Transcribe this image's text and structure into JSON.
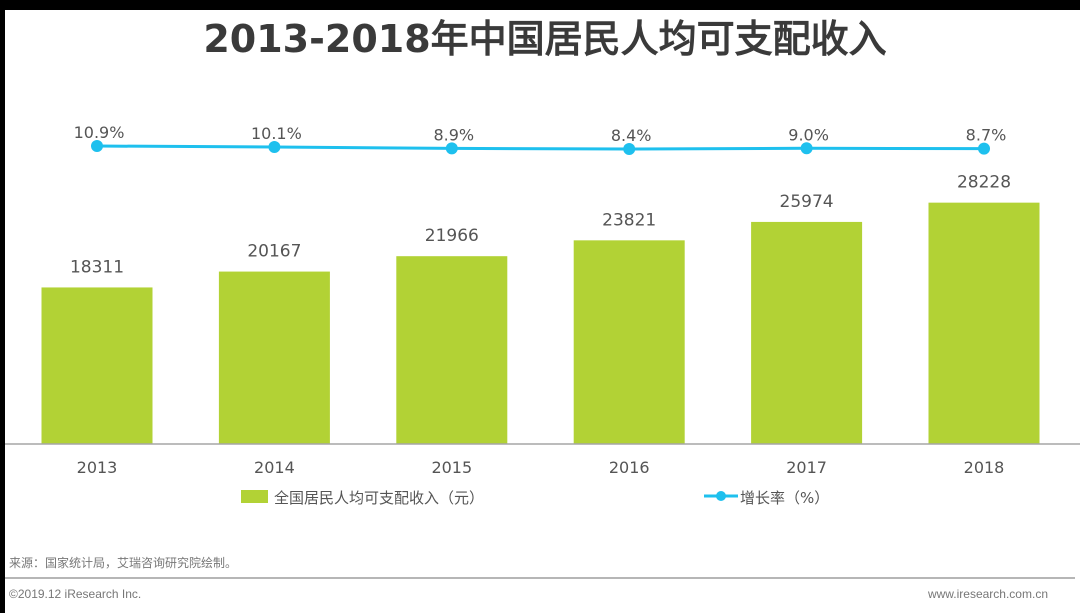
{
  "chart_data": {
    "type": "bar",
    "title": "2013-2018年中国居民人均可支配收入",
    "categories": [
      "2013",
      "2014",
      "2015",
      "2016",
      "2017",
      "2018"
    ],
    "series": [
      {
        "name": "全国居民人均可支配收入（元）",
        "kind": "bar",
        "axis": "left",
        "color": "#b2d235",
        "values": [
          18311,
          20167,
          21966,
          23821,
          25974,
          28228
        ],
        "labels": [
          "18311",
          "20167",
          "21966",
          "23821",
          "25974",
          "28228"
        ]
      },
      {
        "name": "增长率（%）",
        "kind": "line",
        "axis": "right",
        "color": "#1ec0ee",
        "values": [
          10.9,
          10.1,
          8.9,
          8.4,
          9.0,
          8.7
        ],
        "labels": [
          "10.9%",
          "10.1%",
          "8.9%",
          "8.4%",
          "9.0%",
          "8.7%"
        ]
      }
    ],
    "xlabel": "",
    "ylabel": "",
    "grid": false,
    "legend": "bottom"
  },
  "source_note": "来源：国家统计局，艾瑞咨询研究院绘制。",
  "footer": {
    "copyright": "©2019.12 iResearch Inc.",
    "website": "www.iresearch.com.cn"
  }
}
